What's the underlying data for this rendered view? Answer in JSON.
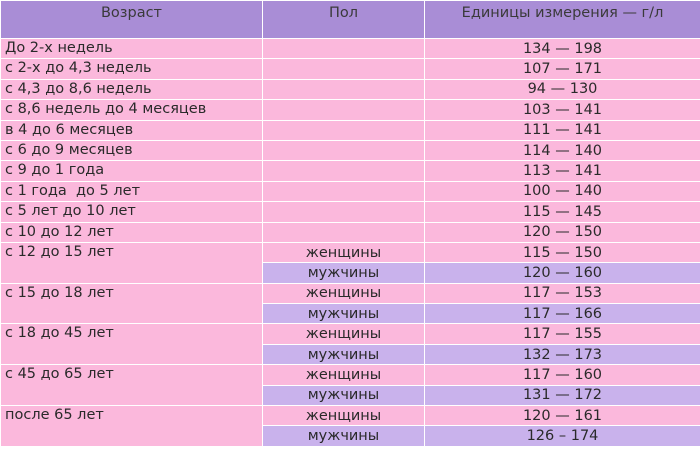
{
  "headers": [
    "Возраст",
    "Пол",
    "Единицы измерения — г/л"
  ],
  "rows": [
    {
      "age": "До 2-х недель",
      "sex": "",
      "value": "134 — 198"
    },
    {
      "age": "с 2-х до 4,3 недель",
      "sex": "",
      "value": "107 — 171"
    },
    {
      "age": "с 4,3 до 8,6 недель",
      "sex": "",
      "value": "94 — 130"
    },
    {
      "age": "с 8,6 недель до 4 месяцев",
      "sex": "",
      "value": "103 — 141"
    },
    {
      "age": "в 4 до 6 месяцев",
      "sex": "",
      "value": "111 — 141"
    },
    {
      "age": "с 6 до 9 месяцев",
      "sex": "",
      "value": "114 — 140"
    },
    {
      "age": "с 9 до 1 года",
      "sex": "",
      "value": "113 — 141"
    },
    {
      "age": "с 1 года  до 5 лет",
      "sex": "",
      "value": "100 — 140"
    },
    {
      "age": "с 5 лет до 10 лет",
      "sex": "",
      "value": "115 — 145"
    },
    {
      "age": "с 10 до 12 лет",
      "sex": "",
      "value": "120 — 150"
    },
    {
      "age": "с 12 до 15 лет",
      "sex": "женщины",
      "value": "115 — 150"
    },
    {
      "age": "",
      "sex": "мужчины",
      "value": "120 — 160"
    },
    {
      "age": "с 15 до 18 лет",
      "sex": "женщины",
      "value": "117 — 153"
    },
    {
      "age": "",
      "sex": "мужчины",
      "value": "117 — 166"
    },
    {
      "age": "с 18 до 45 лет",
      "sex": "женщины",
      "value": "117 — 155"
    },
    {
      "age": "",
      "sex": "мужчины",
      "value": "132 — 173"
    },
    {
      "age": "с 45 до 65 лет",
      "sex": "женщины",
      "value": "117 — 160"
    },
    {
      "age": "",
      "sex": "мужчины",
      "value": "131 — 172"
    },
    {
      "age": "после 65 лет",
      "sex": "женщины",
      "value": "120 — 161"
    },
    {
      "age": "",
      "sex": "мужчины",
      "value": "126 – 174"
    }
  ]
}
